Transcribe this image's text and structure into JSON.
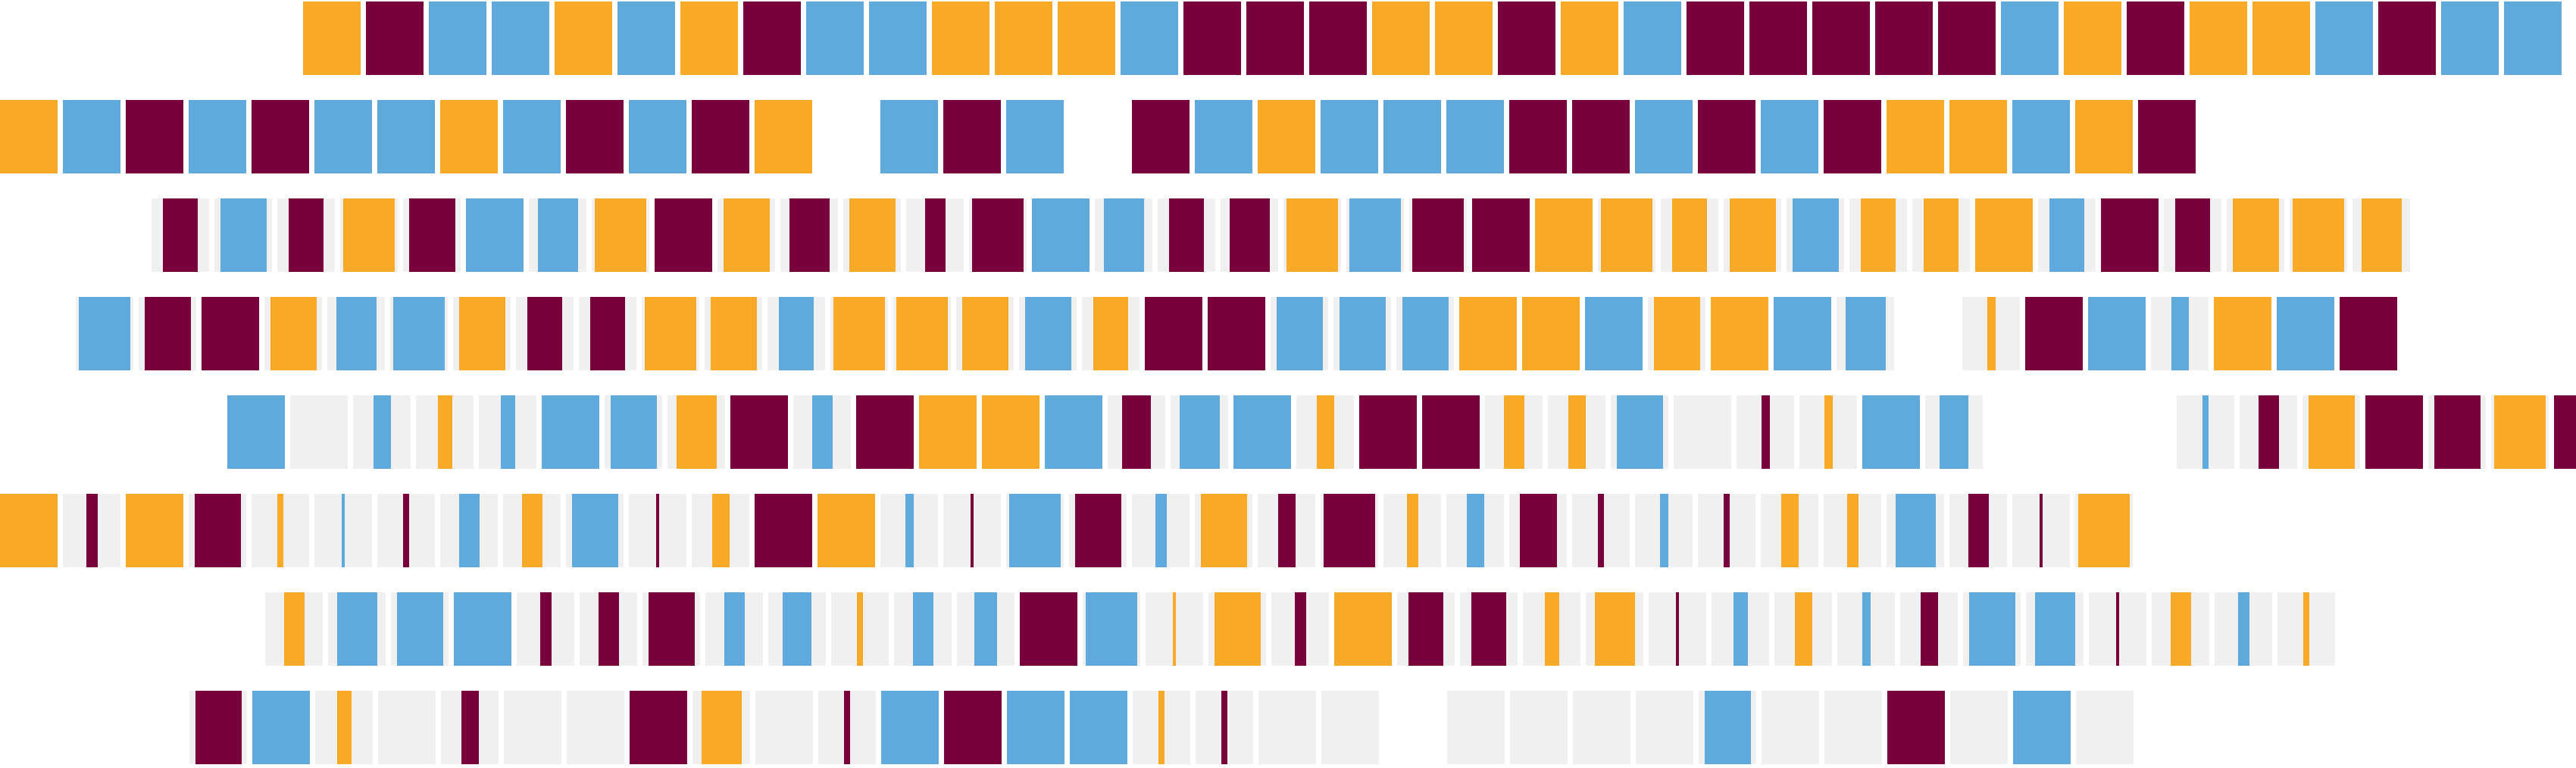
{
  "chart_data": {
    "type": "heatmap",
    "title": "",
    "colors": {
      "orange": "#F8A928",
      "blue": "#5FAADD",
      "maroon": "#7A003C",
      "empty": "#F0F0F0"
    },
    "rows": [
      {
        "start": 0.1176,
        "cells": [
          [
            "orange",
            1
          ],
          [
            "maroon",
            1
          ],
          [
            "blue",
            1
          ],
          [
            "blue",
            1
          ],
          [
            "orange",
            1
          ],
          [
            "blue",
            1
          ],
          [
            "orange",
            1
          ],
          [
            "maroon",
            1
          ],
          [
            "blue",
            1
          ],
          [
            "blue",
            1
          ],
          [
            "orange",
            1
          ],
          [
            "orange",
            1
          ],
          [
            "orange",
            1
          ],
          [
            "blue",
            1
          ],
          [
            "maroon",
            1
          ],
          [
            "maroon",
            1
          ],
          [
            "maroon",
            1
          ],
          [
            "orange",
            1
          ],
          [
            "orange",
            1
          ],
          [
            "maroon",
            1
          ],
          [
            "orange",
            1
          ],
          [
            "blue",
            1
          ],
          [
            "maroon",
            1
          ],
          [
            "maroon",
            1
          ],
          [
            "maroon",
            1
          ],
          [
            "maroon",
            1
          ],
          [
            "maroon",
            1
          ],
          [
            "blue",
            1
          ],
          [
            "orange",
            1
          ],
          [
            "maroon",
            1
          ],
          [
            "orange",
            1
          ],
          [
            "orange",
            1
          ],
          [
            "blue",
            1
          ],
          [
            "maroon",
            1
          ],
          [
            "blue",
            1
          ],
          [
            "blue",
            1
          ]
        ]
      },
      {
        "start": 0.0,
        "cells": [
          [
            "orange",
            1
          ],
          [
            "blue",
            1
          ],
          [
            "maroon",
            1
          ],
          [
            "blue",
            1
          ],
          [
            "maroon",
            1
          ],
          [
            "blue",
            1
          ],
          [
            "blue",
            1
          ],
          [
            "orange",
            1
          ],
          [
            "blue",
            1
          ],
          [
            "maroon",
            1
          ],
          [
            "blue",
            1
          ],
          [
            "maroon",
            1
          ],
          [
            "orange",
            1
          ],
          [
            "none",
            1
          ],
          [
            "blue",
            1
          ],
          [
            "maroon",
            1
          ],
          [
            "blue",
            1
          ],
          [
            "none",
            1
          ],
          [
            "maroon",
            1
          ],
          [
            "blue",
            1
          ],
          [
            "orange",
            1
          ],
          [
            "blue",
            1
          ],
          [
            "blue",
            1
          ],
          [
            "blue",
            1
          ],
          [
            "maroon",
            1
          ],
          [
            "maroon",
            1
          ],
          [
            "blue",
            1
          ],
          [
            "maroon",
            1
          ],
          [
            "blue",
            1
          ],
          [
            "maroon",
            1
          ],
          [
            "orange",
            1
          ],
          [
            "orange",
            1
          ],
          [
            "blue",
            1
          ],
          [
            "orange",
            1
          ],
          [
            "maroon",
            1
          ]
        ]
      },
      {
        "start": 0.0588,
        "cells": [
          [
            "maroon",
            0.6
          ],
          [
            "blue",
            0.8
          ],
          [
            "maroon",
            0.6
          ],
          [
            "orange",
            0.9
          ],
          [
            "maroon",
            0.8
          ],
          [
            "blue",
            1
          ],
          [
            "blue",
            0.7
          ],
          [
            "orange",
            0.9
          ],
          [
            "maroon",
            1
          ],
          [
            "orange",
            0.8
          ],
          [
            "maroon",
            0.7
          ],
          [
            "orange",
            0.8
          ],
          [
            "maroon",
            0.35
          ],
          [
            "maroon",
            0.9
          ],
          [
            "blue",
            1
          ],
          [
            "blue",
            0.7
          ],
          [
            "maroon",
            0.6
          ],
          [
            "maroon",
            0.7
          ],
          [
            "orange",
            0.9
          ],
          [
            "blue",
            0.9
          ],
          [
            "maroon",
            0.9
          ],
          [
            "maroon",
            1
          ],
          [
            "orange",
            1
          ],
          [
            "orange",
            0.9
          ],
          [
            "orange",
            0.6
          ],
          [
            "orange",
            0.8
          ],
          [
            "blue",
            0.8
          ],
          [
            "orange",
            0.6
          ],
          [
            "orange",
            0.6
          ],
          [
            "orange",
            1
          ],
          [
            "blue",
            0.6
          ],
          [
            "maroon",
            1
          ],
          [
            "maroon",
            0.6
          ],
          [
            "orange",
            0.8
          ],
          [
            "orange",
            0.9
          ],
          [
            "orange",
            0.7
          ]
        ]
      },
      {
        "start": 0.0294,
        "cells": [
          [
            "blue",
            0.9
          ],
          [
            "maroon",
            0.8
          ],
          [
            "maroon",
            1
          ],
          [
            "orange",
            0.8
          ],
          [
            "blue",
            0.7
          ],
          [
            "blue",
            0.9
          ],
          [
            "orange",
            0.8
          ],
          [
            "maroon",
            0.6
          ],
          [
            "maroon",
            0.6
          ],
          [
            "orange",
            0.9
          ],
          [
            "orange",
            0.8
          ],
          [
            "blue",
            0.6
          ],
          [
            "orange",
            0.9
          ],
          [
            "orange",
            0.9
          ],
          [
            "orange",
            0.8
          ],
          [
            "blue",
            0.8
          ],
          [
            "orange",
            0.6
          ],
          [
            "maroon",
            1
          ],
          [
            "maroon",
            1
          ],
          [
            "blue",
            0.8
          ],
          [
            "blue",
            0.8
          ],
          [
            "blue",
            0.8
          ],
          [
            "orange",
            1
          ],
          [
            "orange",
            1
          ],
          [
            "blue",
            1
          ],
          [
            "orange",
            0.8
          ],
          [
            "orange",
            1
          ],
          [
            "blue",
            1
          ],
          [
            "blue",
            0.7
          ],
          [
            "none",
            0
          ],
          [
            "orange",
            0.15
          ],
          [
            "maroon",
            1
          ],
          [
            "blue",
            1
          ],
          [
            "blue",
            0.3
          ],
          [
            "orange",
            1
          ],
          [
            "blue",
            1
          ],
          [
            "maroon",
            1
          ]
        ]
      },
      {
        "start": 0.0882,
        "cells": [
          [
            "blue",
            1
          ],
          [
            "empty",
            1
          ],
          [
            "blue",
            0.3
          ],
          [
            "orange",
            0.25
          ],
          [
            "blue",
            0.25
          ],
          [
            "blue",
            1
          ],
          [
            "blue",
            0.8
          ],
          [
            "orange",
            0.7
          ],
          [
            "maroon",
            1
          ],
          [
            "blue",
            0.35
          ],
          [
            "maroon",
            1
          ],
          [
            "orange",
            1
          ],
          [
            "orange",
            1
          ],
          [
            "blue",
            1
          ],
          [
            "maroon",
            0.5
          ],
          [
            "blue",
            0.7
          ],
          [
            "blue",
            1
          ],
          [
            "orange",
            0.3
          ],
          [
            "maroon",
            1
          ],
          [
            "maroon",
            1
          ],
          [
            "orange",
            0.35
          ],
          [
            "orange",
            0.3
          ],
          [
            "blue",
            0.8
          ],
          [
            "empty",
            1
          ],
          [
            "maroon",
            0.15
          ],
          [
            "orange",
            0.15
          ],
          [
            "blue",
            1
          ],
          [
            "blue",
            0.5
          ],
          [
            "none",
            1
          ],
          [
            "none",
            1
          ],
          [
            "none",
            1
          ],
          [
            "blue",
            0.1
          ],
          [
            "maroon",
            0.35
          ],
          [
            "orange",
            0.8
          ],
          [
            "maroon",
            1
          ],
          [
            "maroon",
            0.8
          ],
          [
            "orange",
            0.9
          ],
          [
            "maroon",
            1
          ]
        ]
      },
      {
        "start": 0.0,
        "cells": [
          [
            "orange",
            1
          ],
          [
            "maroon",
            0.2
          ],
          [
            "orange",
            1
          ],
          [
            "maroon",
            0.8
          ],
          [
            "orange",
            0.1
          ],
          [
            "blue",
            0.05
          ],
          [
            "maroon",
            0.1
          ],
          [
            "blue",
            0.35
          ],
          [
            "orange",
            0.35
          ],
          [
            "blue",
            0.8
          ],
          [
            "maroon",
            0.05
          ],
          [
            "orange",
            0.3
          ],
          [
            "maroon",
            1
          ],
          [
            "orange",
            1
          ],
          [
            "blue",
            0.15
          ],
          [
            "maroon",
            0.05
          ],
          [
            "blue",
            0.9
          ],
          [
            "maroon",
            0.8
          ],
          [
            "blue",
            0.2
          ],
          [
            "orange",
            0.8
          ],
          [
            "maroon",
            0.3
          ],
          [
            "maroon",
            0.9
          ],
          [
            "orange",
            0.2
          ],
          [
            "blue",
            0.3
          ],
          [
            "maroon",
            0.65
          ],
          [
            "maroon",
            0.1
          ],
          [
            "blue",
            0.15
          ],
          [
            "maroon",
            0.1
          ],
          [
            "orange",
            0.3
          ],
          [
            "orange",
            0.2
          ],
          [
            "blue",
            0.7
          ],
          [
            "maroon",
            0.35
          ],
          [
            "maroon",
            0.02
          ],
          [
            "orange",
            0.9
          ]
        ]
      },
      {
        "start": 0.1029,
        "cells": [
          [
            "orange",
            0.35
          ],
          [
            "blue",
            0.7
          ],
          [
            "blue",
            0.8
          ],
          [
            "blue",
            1
          ],
          [
            "maroon",
            0.2
          ],
          [
            "maroon",
            0.35
          ],
          [
            "maroon",
            0.8
          ],
          [
            "blue",
            0.35
          ],
          [
            "blue",
            0.5
          ],
          [
            "orange",
            0.1
          ],
          [
            "blue",
            0.35
          ],
          [
            "blue",
            0.4
          ],
          [
            "maroon",
            1
          ],
          [
            "blue",
            0.9
          ],
          [
            "orange",
            0.05
          ],
          [
            "orange",
            0.8
          ],
          [
            "maroon",
            0.2
          ],
          [
            "orange",
            1
          ],
          [
            "maroon",
            0.6
          ],
          [
            "maroon",
            0.6
          ],
          [
            "orange",
            0.25
          ],
          [
            "orange",
            0.7
          ],
          [
            "maroon",
            0.05
          ],
          [
            "blue",
            0.25
          ],
          [
            "orange",
            0.3
          ],
          [
            "blue",
            0.15
          ],
          [
            "maroon",
            0.3
          ],
          [
            "blue",
            0.8
          ],
          [
            "blue",
            0.7
          ],
          [
            "maroon",
            0.05
          ],
          [
            "orange",
            0.35
          ],
          [
            "blue",
            0.2
          ],
          [
            "orange",
            0.1
          ]
        ]
      },
      {
        "start": 0.0735,
        "cells": [
          [
            "maroon",
            0.8
          ],
          [
            "blue",
            1
          ],
          [
            "orange",
            0.25
          ],
          [
            "empty",
            1
          ],
          [
            "maroon",
            0.3
          ],
          [
            "empty",
            1
          ],
          [
            "empty",
            1
          ],
          [
            "maroon",
            1
          ],
          [
            "orange",
            0.7
          ],
          [
            "empty",
            1
          ],
          [
            "maroon",
            0.1
          ],
          [
            "blue",
            1
          ],
          [
            "maroon",
            1
          ],
          [
            "blue",
            1
          ],
          [
            "blue",
            1
          ],
          [
            "orange",
            0.1
          ],
          [
            "maroon",
            0.1
          ],
          [
            "empty",
            1
          ],
          [
            "empty",
            1
          ],
          [
            "none",
            1
          ],
          [
            "empty",
            1
          ],
          [
            "empty",
            1
          ],
          [
            "empty",
            1
          ],
          [
            "empty",
            1
          ],
          [
            "blue",
            0.8
          ],
          [
            "empty",
            1
          ],
          [
            "empty",
            1
          ],
          [
            "maroon",
            1
          ],
          [
            "empty",
            1
          ],
          [
            "blue",
            1
          ],
          [
            "empty",
            1
          ]
        ]
      }
    ]
  }
}
